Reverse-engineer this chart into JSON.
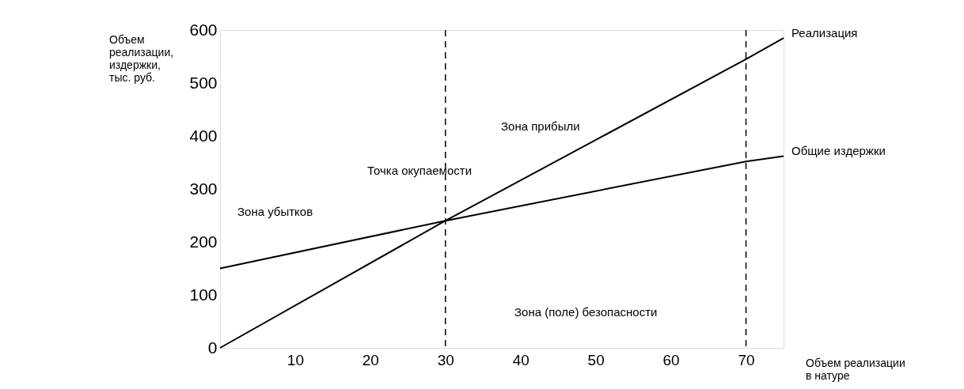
{
  "chart_data": {
    "type": "line",
    "ylabel": "Объем\nреализации,\nиздержки,\nтыс. руб.",
    "xlabel": "Объем реализации\nв натуре",
    "xlim": [
      0,
      75
    ],
    "xticks": [
      10,
      20,
      30,
      40,
      50,
      60,
      70
    ],
    "ylim": [
      0,
      600
    ],
    "yticks": [
      0,
      100,
      200,
      300,
      400,
      500,
      600
    ],
    "grid": false,
    "marker": "none",
    "line_style": "solid",
    "series": [
      {
        "name": "Реализация",
        "color": "#000000",
        "x": [
          0,
          30,
          70,
          75
        ],
        "values": [
          0,
          240,
          545,
          585
        ]
      },
      {
        "name": "Общие издержки",
        "color": "#000000",
        "x": [
          0,
          30,
          70,
          75
        ],
        "values": [
          150,
          240,
          352,
          362
        ]
      }
    ],
    "ref_lines": [
      {
        "axis": "x",
        "value": 30,
        "color": "#000000",
        "line_style": "dashed"
      },
      {
        "axis": "x",
        "value": 70,
        "color": "#000000",
        "line_style": "dashed"
      }
    ],
    "annotations": [
      "Зона убытков",
      "Точка окупаемости",
      "Зона прибыли",
      "Зона (поле) безопасности"
    ]
  }
}
